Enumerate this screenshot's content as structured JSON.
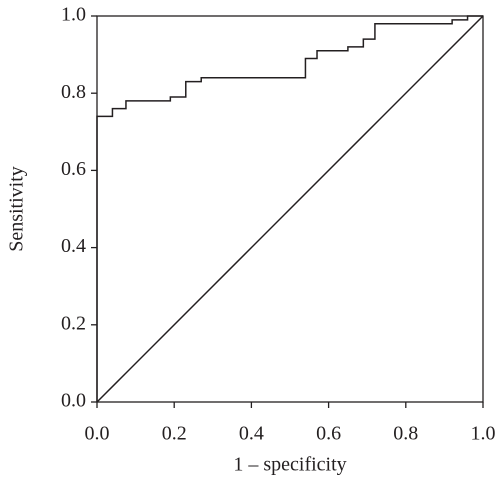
{
  "chart_data": {
    "type": "line",
    "xlabel": "1 – specificity",
    "ylabel": "Sensitivity",
    "series": [
      {
        "color": "#231f20",
        "x": [
          0,
          0,
          0.04,
          0.04,
          0.075,
          0.075,
          0.19,
          0.19,
          0.23,
          0.23,
          0.27,
          0.27,
          0.54,
          0.54,
          0.57,
          0.57,
          0.65,
          0.65,
          0.69,
          0.69,
          0.72,
          0.72,
          0.92,
          0.92,
          0.96,
          0.96,
          1
        ],
        "values": [
          0,
          0.74,
          0.74,
          0.76,
          0.76,
          0.78,
          0.78,
          0.79,
          0.79,
          0.83,
          0.83,
          0.84,
          0.84,
          0.89,
          0.89,
          0.91,
          0.91,
          0.92,
          0.92,
          0.94,
          0.94,
          0.98,
          0.98,
          0.99,
          0.99,
          1,
          1
        ]
      },
      {
        "color": "#231f20",
        "x": [
          0,
          1
        ],
        "values": [
          0,
          1
        ]
      }
    ],
    "xlim": [
      0,
      1
    ],
    "ylim": [
      0,
      1
    ],
    "xticks": [
      {
        "value": 0,
        "label": "0.0"
      },
      0.2,
      0.4,
      0.6,
      0.8,
      {
        "value": 1,
        "label": "1.0"
      }
    ],
    "yticks": [
      {
        "value": 0,
        "label": "0.0"
      },
      0.2,
      0.4,
      0.6,
      0.8,
      {
        "value": 1,
        "label": "1.0"
      }
    ]
  }
}
